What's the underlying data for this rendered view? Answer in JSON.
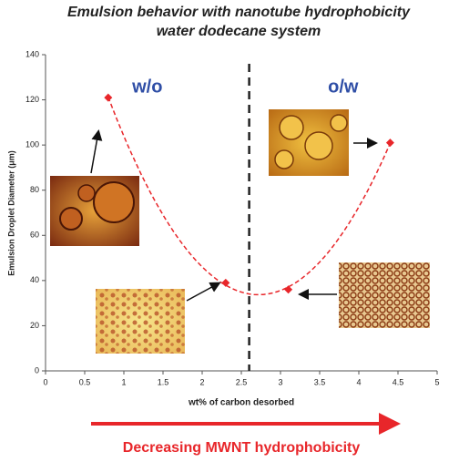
{
  "chart_data": {
    "type": "scatter",
    "title": "Emulsion behavior with nanotube hydrophobicity",
    "subtitle": "water dodecane system",
    "x_label": "wt% of carbon desorbed",
    "y_label": "Emulsion Droplet Diameter (μm)",
    "x": [
      0.8,
      2.3,
      3.1,
      4.4
    ],
    "values": [
      121,
      39,
      36,
      101
    ],
    "color": "#e8262a",
    "trend_line": true,
    "divider_x": 2.6,
    "annotations": [
      "w/o",
      "o/w"
    ],
    "annotation_color": "#2f4ea6",
    "footer": "Decreasing  MWNT hydrophobicity",
    "footer_color": "#e8262a",
    "xlim": [
      0,
      5
    ],
    "xticks": [
      0,
      0.5,
      1,
      1.5,
      2,
      2.5,
      3,
      3.5,
      4,
      4.5,
      5
    ],
    "ylim": [
      0,
      140
    ],
    "yticks": [
      0,
      20,
      40,
      60,
      80,
      100,
      120,
      140
    ]
  }
}
